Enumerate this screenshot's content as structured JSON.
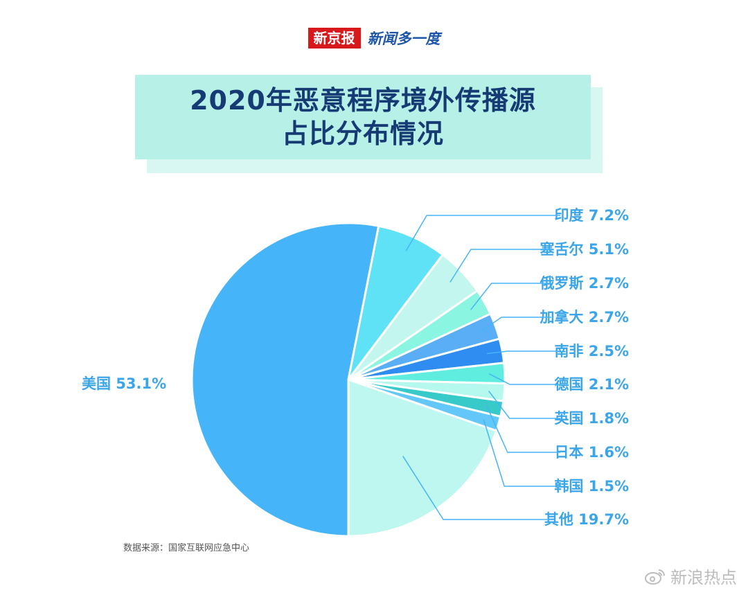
{
  "header": {
    "logo": "新京报",
    "subtitle": "新闻多一度"
  },
  "title": {
    "line1": "2020年恶意程序境外传播源",
    "line2": "占比分布情况"
  },
  "chart_data": {
    "type": "pie",
    "unit": "%",
    "slices": [
      {
        "label": "美国",
        "value": 53.1,
        "display": "美国 53.1%",
        "color": "#46b4f9"
      },
      {
        "label": "印度",
        "value": 7.2,
        "display": "印度 7.2%",
        "color": "#5fe2f5"
      },
      {
        "label": "塞舌尔",
        "value": 5.1,
        "display": "塞舌尔 5.1%",
        "color": "#c3f6ee"
      },
      {
        "label": "俄罗斯",
        "value": 2.7,
        "display": "俄罗斯 2.7%",
        "color": "#8af5e0"
      },
      {
        "label": "加拿大",
        "value": 2.7,
        "display": "加拿大 2.7%",
        "color": "#5aaef5"
      },
      {
        "label": "南非",
        "value": 2.5,
        "display": "南非 2.5%",
        "color": "#2f8df2"
      },
      {
        "label": "德国",
        "value": 2.1,
        "display": "德国 2.1%",
        "color": "#5fede0"
      },
      {
        "label": "英国",
        "value": 1.8,
        "display": "英国 1.8%",
        "color": "#b5f8ee"
      },
      {
        "label": "日本",
        "value": 1.6,
        "display": "日本 1.6%",
        "color": "#38c9c9"
      },
      {
        "label": "韩国",
        "value": 1.5,
        "display": "韩国 1.5%",
        "color": "#63c8f9"
      },
      {
        "label": "其他",
        "value": 19.7,
        "display": "其他 19.7%",
        "color": "#bdf7ef"
      }
    ],
    "label_color": "#3aa5e8",
    "leader_color": "#46b4f9"
  },
  "footer": {
    "source": "数据来源：国家互联网应急中心",
    "watermark": "新浪热点"
  }
}
